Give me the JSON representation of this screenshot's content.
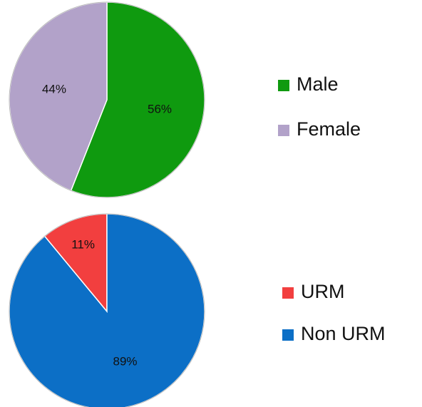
{
  "chart_data": [
    {
      "type": "pie",
      "categories": [
        "Male",
        "Female"
      ],
      "values": [
        56,
        44
      ],
      "value_labels": [
        "56%",
        "44%"
      ],
      "colors": [
        "#0f9a0f",
        "#b2a2c9"
      ]
    },
    {
      "type": "pie",
      "categories": [
        "URM",
        "Non URM"
      ],
      "values": [
        11,
        89
      ],
      "value_labels": [
        "11%",
        "89%"
      ],
      "colors": [
        "#f23f3f",
        "#0c6fc6"
      ]
    }
  ]
}
